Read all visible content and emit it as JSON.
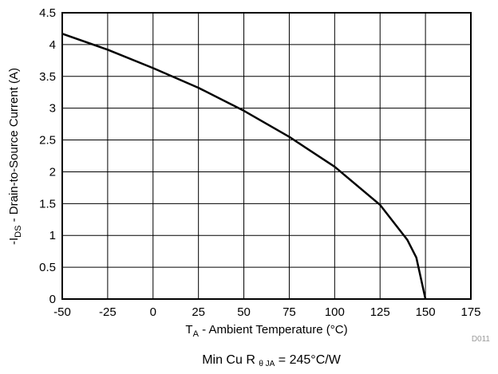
{
  "chart_data": {
    "type": "line",
    "ylabel": {
      "prefix": "-I",
      "sub": "DS",
      "text": " - Drain-to-Source Current (A)"
    },
    "xlabel": {
      "prefix": "T",
      "sub": "A",
      "text": " - Ambient Temperature (°C)"
    },
    "xlim": [
      -50,
      175
    ],
    "ylim": [
      0,
      4.5
    ],
    "xticks": [
      "-50",
      "-25",
      "0",
      "25",
      "50",
      "75",
      "100",
      "125",
      "150",
      "175"
    ],
    "yticks": [
      "0",
      "0.5",
      "1",
      "1.5",
      "2",
      "2.5",
      "3",
      "3.5",
      "4",
      "4.5"
    ],
    "grid": true,
    "series": [
      {
        "color": "#000000",
        "x": [
          -50,
          -25,
          0,
          25,
          50,
          75,
          100,
          125,
          140,
          145,
          150
        ],
        "y": [
          4.17,
          3.92,
          3.63,
          3.32,
          2.96,
          2.55,
          2.08,
          1.48,
          0.93,
          0.65,
          0.0
        ]
      }
    ]
  },
  "figure_id": "D011",
  "caption": {
    "main": "Min Cu R",
    "sub": "θ JA",
    "suffix": " = 245°C/W"
  }
}
